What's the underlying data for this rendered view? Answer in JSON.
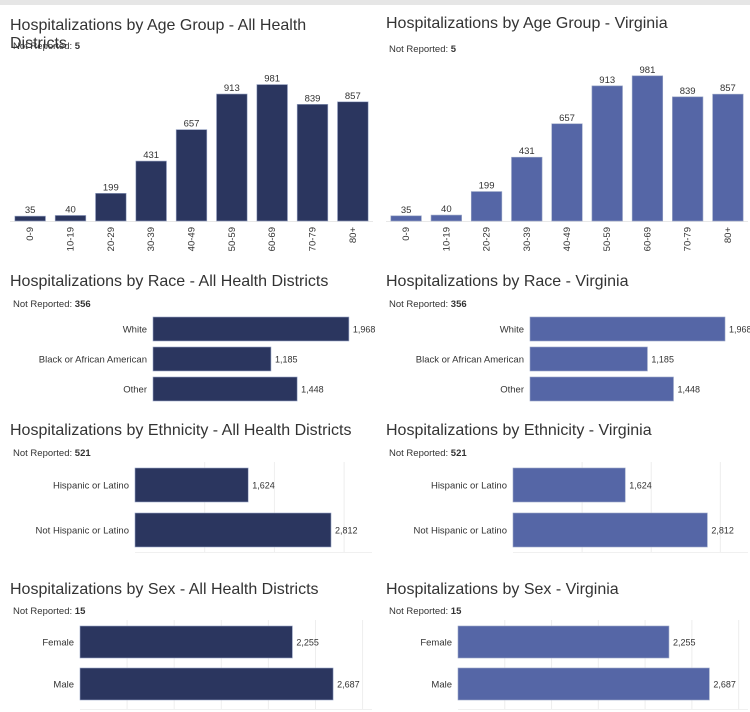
{
  "colors": {
    "dark_navy": "#2b365f",
    "periwinkle": "#5566a6",
    "grid": "#eeeeee",
    "topbar": "#e6e6e6"
  },
  "not_reported_label": "Not Reported: ",
  "chart_data": [
    {
      "id": "age-all",
      "type": "bar",
      "orientation": "vertical",
      "title": "Hospitalizations by Age Group - All Health Districts",
      "not_reported": "5",
      "categories": [
        "0-9",
        "10-19",
        "20-29",
        "30-39",
        "40-49",
        "50-59",
        "60-69",
        "70-79",
        "80+"
      ],
      "values": [
        35,
        40,
        199,
        431,
        657,
        913,
        981,
        839,
        857
      ],
      "labels": [
        "35",
        "40",
        "199",
        "431",
        "657",
        "913",
        "981",
        "839",
        "857"
      ],
      "color": "#2b365f",
      "xlabel": "",
      "ylabel": "",
      "ylim": [
        0,
        1100
      ],
      "grid": false
    },
    {
      "id": "age-va",
      "type": "bar",
      "orientation": "vertical",
      "title": "Hospitalizations by Age Group - Virginia",
      "not_reported": "5",
      "categories": [
        "0-9",
        "10-19",
        "20-29",
        "30-39",
        "40-49",
        "50-59",
        "60-69",
        "70-79",
        "80+"
      ],
      "values": [
        35,
        40,
        199,
        431,
        657,
        913,
        981,
        839,
        857
      ],
      "labels": [
        "35",
        "40",
        "199",
        "431",
        "657",
        "913",
        "981",
        "839",
        "857"
      ],
      "color": "#5566a6",
      "xlabel": "",
      "ylabel": "",
      "ylim": [
        0,
        1000
      ],
      "grid": false
    },
    {
      "id": "race-all",
      "type": "bar",
      "orientation": "horizontal",
      "title": "Hospitalizations by Race - All Health Districts",
      "not_reported": "356",
      "categories": [
        "White",
        "Black or African American",
        "Other"
      ],
      "values": [
        1968,
        1185,
        1448
      ],
      "labels": [
        "1,968",
        "1,185",
        "1,448"
      ],
      "color": "#2b365f",
      "xlim": [
        0,
        2200
      ],
      "grid": false
    },
    {
      "id": "race-va",
      "type": "bar",
      "orientation": "horizontal",
      "title": "Hospitalizations by Race - Virginia",
      "not_reported": "356",
      "categories": [
        "White",
        "Black or African American",
        "Other"
      ],
      "values": [
        1968,
        1185,
        1448
      ],
      "labels": [
        "1,968",
        "1,185",
        "1,448"
      ],
      "color": "#5566a6",
      "xlim": [
        0,
        2200
      ],
      "grid": false
    },
    {
      "id": "eth-all",
      "type": "bar",
      "orientation": "horizontal",
      "title": "Hospitalizations by Ethnicity - All Health Districts",
      "not_reported": "521",
      "categories": [
        "Hispanic or Latino",
        "Not Hispanic or Latino"
      ],
      "values": [
        1624,
        2812
      ],
      "labels": [
        "1,624",
        "2,812"
      ],
      "color": "#2b365f",
      "xlim": [
        0,
        3400
      ],
      "grid": true,
      "grid_step": 1000
    },
    {
      "id": "eth-va",
      "type": "bar",
      "orientation": "horizontal",
      "title": "Hospitalizations by Ethnicity - Virginia",
      "not_reported": "521",
      "categories": [
        "Hispanic or Latino",
        "Not Hispanic or Latino"
      ],
      "values": [
        1624,
        2812
      ],
      "labels": [
        "1,624",
        "2,812"
      ],
      "color": "#5566a6",
      "xlim": [
        0,
        3400
      ],
      "grid": true,
      "grid_step": 1000
    },
    {
      "id": "sex-all",
      "type": "bar",
      "orientation": "horizontal",
      "title": "Hospitalizations by Sex - All Health Districts",
      "not_reported": "15",
      "categories": [
        "Female",
        "Male"
      ],
      "values": [
        2255,
        2687
      ],
      "labels": [
        "2,255",
        "2,687"
      ],
      "color": "#2b365f",
      "xlim": [
        0,
        3100
      ],
      "grid": true,
      "grid_step": 500
    },
    {
      "id": "sex-va",
      "type": "bar",
      "orientation": "horizontal",
      "title": "Hospitalizations by Sex - Virginia",
      "not_reported": "15",
      "categories": [
        "Female",
        "Male"
      ],
      "values": [
        2255,
        2687
      ],
      "labels": [
        "2,255",
        "2,687"
      ],
      "color": "#5566a6",
      "xlim": [
        0,
        3100
      ],
      "grid": true,
      "grid_step": 500
    }
  ]
}
